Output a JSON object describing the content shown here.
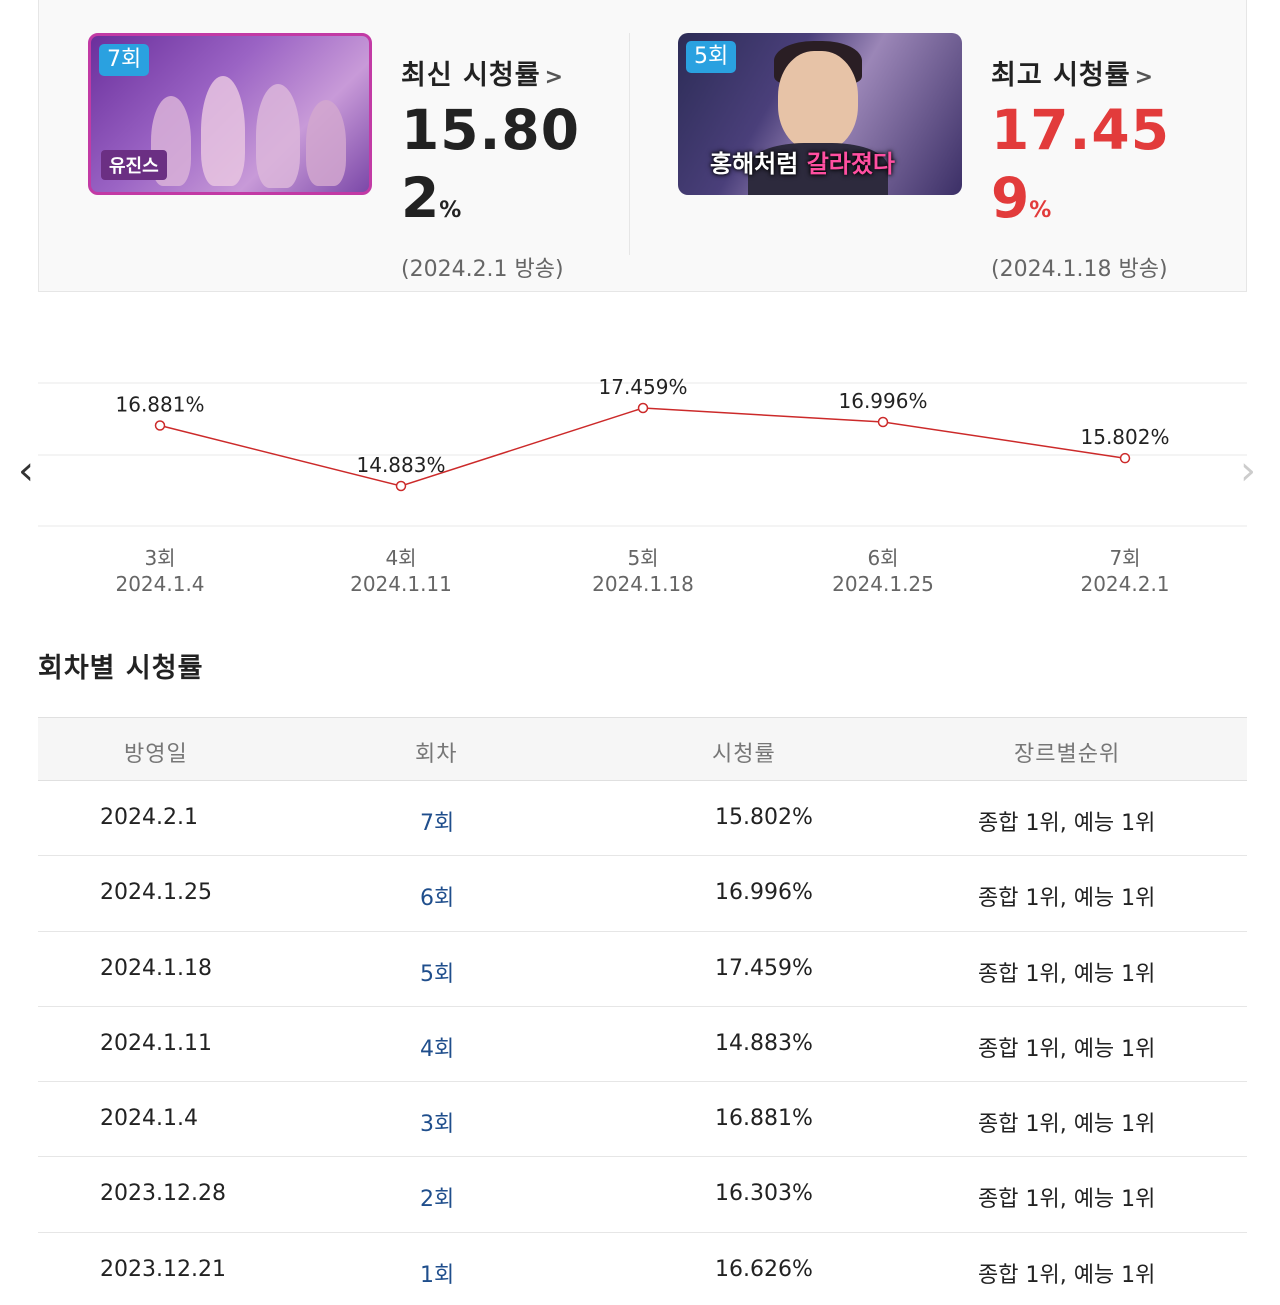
{
  "summary": {
    "latest": {
      "badge": "7회",
      "thumb_caption": "유진스",
      "title": "최신 시청률",
      "value_main": "15.80",
      "value_tail": "2",
      "unit": "%",
      "date": "(2024.2.1 방송)"
    },
    "best": {
      "badge": "5회",
      "thumb_caption_a": "홍해처럼",
      "thumb_caption_b": "갈라졌다",
      "title": "최고 시청률",
      "value_main": "17.45",
      "value_tail": "9",
      "unit": "%",
      "date": "(2024.1.18 방송)"
    },
    "accent_color": "#e23b3b"
  },
  "chart_data": {
    "type": "line",
    "x": [
      "3회",
      "4회",
      "5회",
      "6회",
      "7회"
    ],
    "dates": [
      "2024.1.4",
      "2024.1.11",
      "2024.1.18",
      "2024.1.25",
      "2024.2.1"
    ],
    "values": [
      16.881,
      14.883,
      17.459,
      16.996,
      15.802
    ],
    "labels": [
      "16.881%",
      "14.883%",
      "17.459%",
      "16.996%",
      "15.802%"
    ],
    "line_color": "#cc2a2a",
    "grid": true
  },
  "table": {
    "title": "회차별 시청률",
    "headers": [
      "방영일",
      "회차",
      "시청률",
      "장르별순위"
    ],
    "rows": [
      {
        "date": "2024.2.1",
        "ep": "7회",
        "rating": "15.802%",
        "rank": "종합 1위, 예능 1위"
      },
      {
        "date": "2024.1.25",
        "ep": "6회",
        "rating": "16.996%",
        "rank": "종합 1위, 예능 1위"
      },
      {
        "date": "2024.1.18",
        "ep": "5회",
        "rating": "17.459%",
        "rank": "종합 1위, 예능 1위"
      },
      {
        "date": "2024.1.11",
        "ep": "4회",
        "rating": "14.883%",
        "rank": "종합 1위, 예능 1위"
      },
      {
        "date": "2024.1.4",
        "ep": "3회",
        "rating": "16.881%",
        "rank": "종합 1위, 예능 1위"
      },
      {
        "date": "2023.12.28",
        "ep": "2회",
        "rating": "16.303%",
        "rank": "종합 1위, 예능 1위"
      },
      {
        "date": "2023.12.21",
        "ep": "1회",
        "rating": "16.626%",
        "rank": "종합 1위, 예능 1위"
      }
    ]
  }
}
